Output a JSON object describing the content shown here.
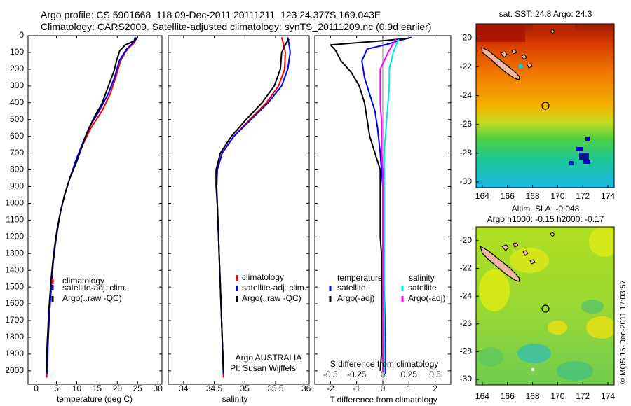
{
  "header": {
    "line1": "Argo profile: CS 5901668_118 09-Dec-2011 20111211_123 24.377S 169.043E",
    "line2": "Climatology: CARS2009. Satellite-adjusted climatology: synTS_20111209.nc (0.9d earlier)"
  },
  "stamp": "©IMOS 15-Dec-2011 17:03:57",
  "colors": {
    "climatology": "#ff0000",
    "satellite": "#0000ff",
    "argo": "#000000",
    "satellite_salinity": "#00e5e5",
    "argo_salinity": "#ff00ff"
  },
  "chart_data": [
    {
      "id": "temperature",
      "type": "line",
      "xlabel": "temperature (deg C)",
      "xlim": [
        -2,
        31
      ],
      "ylim": [
        2080,
        0
      ],
      "xticks": [
        0,
        5,
        10,
        15,
        20,
        25,
        30
      ],
      "yticks": [
        0,
        100,
        200,
        300,
        400,
        500,
        600,
        700,
        800,
        900,
        1000,
        1100,
        1200,
        1300,
        1400,
        1500,
        1600,
        1700,
        1800,
        1900,
        2000
      ],
      "legend": [
        "climatology",
        "satellite-adj. clim.",
        "Argo(..raw -QC)"
      ],
      "series": [
        {
          "name": "climatology",
          "color": "#ff0000",
          "points": [
            [
              24.6,
              10
            ],
            [
              24.3,
              40
            ],
            [
              22.5,
              80
            ],
            [
              20.8,
              150
            ],
            [
              19.6,
              250
            ],
            [
              18.2,
              350
            ],
            [
              16.2,
              450
            ],
            [
              13.5,
              550
            ],
            [
              11.5,
              650
            ],
            [
              9.8,
              750
            ],
            [
              8.3,
              850
            ],
            [
              7,
              950
            ],
            [
              6,
              1050
            ],
            [
              5.2,
              1150
            ],
            [
              4.6,
              1250
            ],
            [
              4.2,
              1350
            ],
            [
              3.8,
              1450
            ],
            [
              3.5,
              1550
            ],
            [
              3.2,
              1650
            ],
            [
              3,
              1750
            ],
            [
              2.8,
              1850
            ],
            [
              2.7,
              1950
            ],
            [
              2.6,
              2040
            ]
          ]
        },
        {
          "name": "satellite-adj. clim.",
          "color": "#0000ff",
          "points": [
            [
              24.4,
              10
            ],
            [
              24,
              40
            ],
            [
              22.3,
              80
            ],
            [
              20.5,
              150
            ],
            [
              19.3,
              250
            ],
            [
              17.7,
              350
            ],
            [
              15.5,
              450
            ],
            [
              13,
              550
            ],
            [
              11.3,
              650
            ],
            [
              9.7,
              750
            ],
            [
              8.3,
              850
            ],
            [
              7,
              950
            ],
            [
              6,
              1050
            ],
            [
              5.3,
              1150
            ],
            [
              4.7,
              1250
            ],
            [
              4.2,
              1350
            ],
            [
              3.9,
              1450
            ],
            [
              3.6,
              1550
            ],
            [
              3.3,
              1650
            ],
            [
              3.1,
              1750
            ],
            [
              2.9,
              1850
            ],
            [
              2.8,
              1950
            ],
            [
              2.7,
              2020
            ]
          ]
        },
        {
          "name": "Argo(..raw -QC)",
          "color": "#000000",
          "points": [
            [
              24.8,
              15
            ],
            [
              24.3,
              30
            ],
            [
              22,
              55
            ],
            [
              20.6,
              90
            ],
            [
              19.8,
              150
            ],
            [
              19.2,
              210
            ],
            [
              17.8,
              300
            ],
            [
              16.3,
              400
            ],
            [
              14,
              500
            ],
            [
              12.2,
              600
            ],
            [
              10,
              750
            ],
            [
              8.3,
              850
            ],
            [
              7,
              950
            ],
            [
              6,
              1050
            ],
            [
              5.2,
              1150
            ],
            [
              4.6,
              1250
            ],
            [
              4.1,
              1350
            ],
            [
              3.7,
              1450
            ],
            [
              3.4,
              1550
            ],
            [
              3.1,
              1650
            ],
            [
              2.9,
              1750
            ],
            [
              2.7,
              1850
            ],
            [
              2.6,
              1950
            ],
            [
              2.6,
              2010
            ]
          ]
        }
      ]
    },
    {
      "id": "salinity",
      "type": "line",
      "xlabel": "salinity",
      "xlim": [
        33.75,
        36.05
      ],
      "ylim": [
        2080,
        0
      ],
      "xticks": [
        34,
        34.5,
        35,
        35.5,
        36
      ],
      "legend": [
        "climatology",
        "satellite-adj. clim.",
        "Argo(..raw -QC)"
      ],
      "annotation": [
        "Argo AUSTRALIA",
        "PI: Susan Wijffels"
      ],
      "series": [
        {
          "name": "climatology",
          "color": "#ff0000",
          "points": [
            [
              35.6,
              10
            ],
            [
              35.63,
              50
            ],
            [
              35.66,
              100
            ],
            [
              35.65,
              200
            ],
            [
              35.55,
              300
            ],
            [
              35.35,
              400
            ],
            [
              35.08,
              500
            ],
            [
              34.82,
              600
            ],
            [
              34.63,
              700
            ],
            [
              34.55,
              800
            ],
            [
              34.54,
              900
            ],
            [
              34.55,
              1000
            ],
            [
              34.56,
              1100
            ],
            [
              34.57,
              1200
            ],
            [
              34.58,
              1300
            ],
            [
              34.59,
              1400
            ],
            [
              34.6,
              1500
            ],
            [
              34.61,
              1600
            ],
            [
              34.62,
              1700
            ],
            [
              34.63,
              1800
            ],
            [
              34.64,
              1900
            ],
            [
              34.65,
              2040
            ]
          ]
        },
        {
          "name": "satellite-adj. clim.",
          "color": "#0000ff",
          "points": [
            [
              35.7,
              10
            ],
            [
              35.72,
              50
            ],
            [
              35.74,
              100
            ],
            [
              35.7,
              200
            ],
            [
              35.6,
              300
            ],
            [
              35.38,
              400
            ],
            [
              35.1,
              500
            ],
            [
              34.82,
              600
            ],
            [
              34.63,
              700
            ],
            [
              34.55,
              800
            ],
            [
              34.54,
              900
            ],
            [
              34.55,
              1000
            ],
            [
              34.56,
              1100
            ],
            [
              34.57,
              1200
            ],
            [
              34.58,
              1300
            ],
            [
              34.59,
              1400
            ],
            [
              34.6,
              1500
            ],
            [
              34.61,
              1600
            ],
            [
              34.62,
              1700
            ],
            [
              34.63,
              1800
            ],
            [
              34.64,
              1900
            ],
            [
              34.65,
              2020
            ]
          ]
        },
        {
          "name": "Argo(..raw -QC)",
          "color": "#000000",
          "points": [
            [
              35.72,
              20
            ],
            [
              35.68,
              40
            ],
            [
              35.6,
              100
            ],
            [
              35.58,
              200
            ],
            [
              35.48,
              300
            ],
            [
              35.28,
              400
            ],
            [
              35.02,
              500
            ],
            [
              34.78,
              600
            ],
            [
              34.6,
              700
            ],
            [
              34.53,
              800
            ],
            [
              34.53,
              900
            ],
            [
              34.55,
              1000
            ],
            [
              34.56,
              1100
            ],
            [
              34.57,
              1200
            ],
            [
              34.58,
              1300
            ],
            [
              34.59,
              1400
            ],
            [
              34.6,
              1500
            ],
            [
              34.61,
              1600
            ],
            [
              34.62,
              1700
            ],
            [
              34.63,
              1800
            ],
            [
              34.64,
              1900
            ],
            [
              34.65,
              2010
            ]
          ]
        }
      ]
    },
    {
      "id": "differences",
      "type": "line",
      "title": "S difference from climatology",
      "xlabel": "T difference from climatology",
      "xlim": [
        -2.6,
        2.6
      ],
      "ylim": [
        2080,
        0
      ],
      "xticks": [
        -2,
        -1,
        0,
        1,
        2
      ],
      "sticks": [
        {
          "value": -2,
          "label": "-0.5"
        },
        {
          "value": -1,
          "label": "-0.25"
        },
        {
          "value": 0,
          "label": "0"
        },
        {
          "value": 1,
          "label": "0.25"
        },
        {
          "value": 2,
          "label": "0.5"
        }
      ],
      "legend_left": {
        "title": "temperature",
        "items": [
          "satellite",
          "Argo(-adj)"
        ]
      },
      "legend_right": {
        "title": "salinity",
        "items": [
          "satellite",
          "Argo(-adj)"
        ]
      },
      "series": [
        {
          "name": "temperature satellite",
          "color": "#0000ff",
          "points": [
            [
              1.1,
              10
            ],
            [
              0.6,
              30
            ],
            [
              0.2,
              50
            ],
            [
              -0.6,
              80
            ],
            [
              -0.8,
              150
            ],
            [
              -0.7,
              250
            ],
            [
              -0.5,
              350
            ],
            [
              -0.3,
              450
            ],
            [
              -0.2,
              550
            ],
            [
              -0.1,
              700
            ],
            [
              0,
              900
            ],
            [
              0,
              1100
            ],
            [
              0.05,
              1300
            ],
            [
              0.05,
              1500
            ],
            [
              0.08,
              1700
            ],
            [
              0.1,
              1900
            ],
            [
              0.1,
              2020
            ]
          ]
        },
        {
          "name": "temperature Argo(-adj)",
          "color": "#000000",
          "points": [
            [
              1,
              15
            ],
            [
              0,
              30
            ],
            [
              -2,
              55
            ],
            [
              -1.8,
              90
            ],
            [
              -1.6,
              150
            ],
            [
              -1.2,
              220
            ],
            [
              -0.9,
              300
            ],
            [
              -0.7,
              400
            ],
            [
              -0.6,
              500
            ],
            [
              -0.5,
              600
            ],
            [
              -0.3,
              700
            ],
            [
              -0.1,
              800
            ],
            [
              -0.1,
              900
            ],
            [
              -0.1,
              1000
            ],
            [
              -0.1,
              1100
            ],
            [
              -0.1,
              1200
            ],
            [
              -0.05,
              1300
            ],
            [
              -0.05,
              1400
            ],
            [
              -0.05,
              1500
            ],
            [
              -0.05,
              1600
            ],
            [
              -0.05,
              1700
            ],
            [
              -0.05,
              1800
            ],
            [
              -0.05,
              1900
            ],
            [
              -0.1,
              2000
            ]
          ]
        },
        {
          "name": "salinity satellite",
          "color": "#00e5e5",
          "points": [
            [
              0.6,
              20
            ],
            [
              0.4,
              100
            ],
            [
              0.25,
              200
            ],
            [
              0.25,
              300
            ],
            [
              0.2,
              400
            ],
            [
              0.15,
              500
            ],
            [
              0.1,
              600
            ],
            [
              0.05,
              700
            ],
            [
              0.05,
              800
            ],
            [
              0.05,
              900
            ],
            [
              0.05,
              1200
            ],
            [
              0.05,
              1500
            ],
            [
              0.05,
              1800
            ],
            [
              0.05,
              2020
            ]
          ]
        },
        {
          "name": "salinity Argo(-adj)",
          "color": "#ff00ff",
          "points": [
            [
              0.5,
              20
            ],
            [
              0.2,
              100
            ],
            [
              -0.1,
              200
            ],
            [
              -0.1,
              300
            ],
            [
              -0.1,
              400
            ],
            [
              -0.05,
              500
            ],
            [
              -0.05,
              600
            ],
            [
              -0.05,
              700
            ],
            [
              0,
              800
            ],
            [
              0,
              900
            ],
            [
              0,
              1200
            ],
            [
              0,
              1500
            ],
            [
              0,
              1800
            ],
            [
              0,
              2010
            ]
          ]
        }
      ]
    },
    {
      "id": "sst_map",
      "type": "heatmap",
      "title": "sat. SST: 24.8  Argo: 24.3",
      "lon": [
        163.5,
        174.5
      ],
      "lat": [
        -30.4,
        -19.0
      ],
      "xticks": [
        164,
        166,
        168,
        170,
        172,
        174
      ],
      "yticks": [
        -20,
        -22,
        -24,
        -26,
        -28,
        -30
      ],
      "marker": [
        169.04,
        -24.38
      ]
    },
    {
      "id": "sla_map",
      "type": "heatmap",
      "title": "Altim. SLA: -0.048",
      "subtitle": "Argo h1000: -0.15  h2000: -0.17",
      "lon": [
        163.5,
        174.5
      ],
      "lat": [
        -30.4,
        -19.0
      ],
      "xticks": [
        164,
        166,
        168,
        170,
        172,
        174
      ],
      "yticks": [
        -20,
        -22,
        -24,
        -26,
        -28,
        -30
      ],
      "marker": [
        169.04,
        -24.38
      ]
    }
  ]
}
